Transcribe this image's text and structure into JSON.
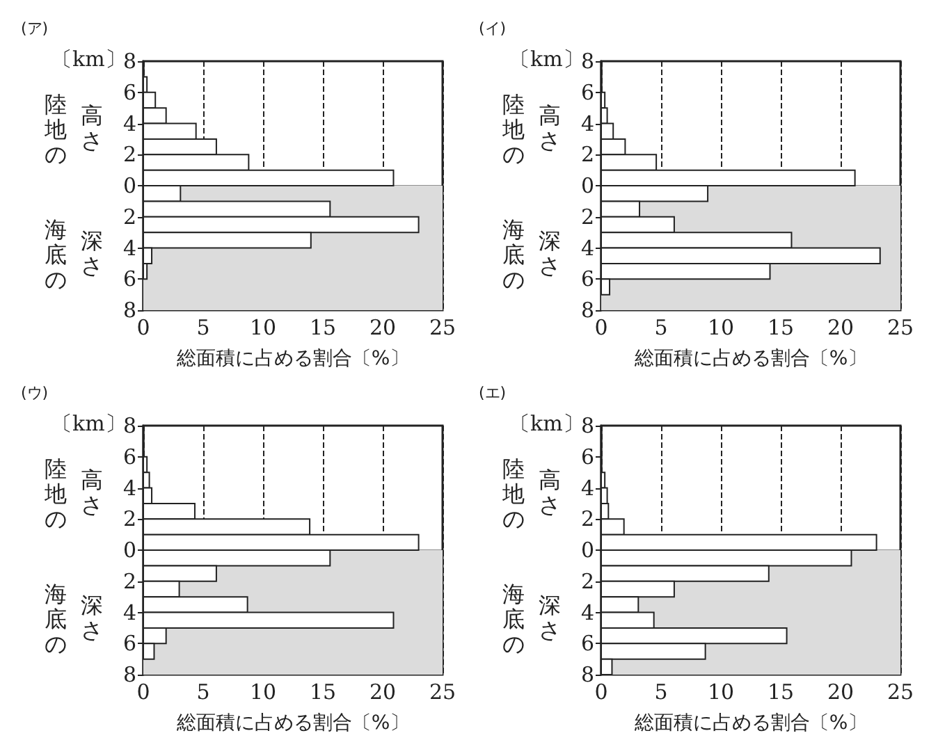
{
  "chart_data": [
    {
      "type": "histogram",
      "orientation": "horizontal",
      "title": "(ア)",
      "xlabel": "総面積に占める割合〔%〕",
      "ylabel": "〔km〕",
      "bins": [
        8,
        7,
        6,
        5,
        4,
        3,
        2,
        1,
        0,
        -1,
        -2,
        -3,
        -4,
        -5,
        -6,
        -7,
        -8
      ],
      "values": [
        0,
        0.3,
        1.0,
        1.9,
        4.4,
        6.1,
        8.8,
        20.9,
        3.1,
        15.6,
        23.0,
        14.0,
        0.7,
        0.3,
        0,
        0
      ],
      "color": "#ffffff",
      "xlim": [
        0,
        25
      ],
      "xticks": [
        0,
        5,
        10,
        15,
        20,
        25
      ],
      "ylim": [
        -8,
        8
      ],
      "yticks": [
        {
          "value": -8,
          "label": "8"
        },
        {
          "value": -6,
          "label": "6"
        },
        {
          "value": -4,
          "label": "4"
        },
        {
          "value": -2,
          "label": "2"
        },
        0,
        2,
        4,
        6,
        8
      ],
      "grid": "x",
      "bands": [
        {
          "axis": "y",
          "from": 0,
          "to": -8,
          "color": "#dcdcdc"
        }
      ],
      "annotations": [
        "陸地の",
        "高さ",
        "海底の",
        "深さ"
      ]
    },
    {
      "type": "histogram",
      "orientation": "horizontal",
      "title": "(イ)",
      "xlabel": "総面積に占める割合〔%〕",
      "ylabel": "〔km〕",
      "bins": [
        8,
        7,
        6,
        5,
        4,
        3,
        2,
        1,
        0,
        -1,
        -2,
        -3,
        -4,
        -5,
        -6,
        -7,
        -8
      ],
      "values": [
        0,
        0,
        0.3,
        0.5,
        1.0,
        2.0,
        4.6,
        21.2,
        8.9,
        3.2,
        6.1,
        15.9,
        23.3,
        14.1,
        0.7,
        0
      ],
      "color": "#ffffff",
      "xlim": [
        0,
        25
      ],
      "xticks": [
        0,
        5,
        10,
        15,
        20,
        25
      ],
      "ylim": [
        -8,
        8
      ],
      "yticks": [
        {
          "value": -8,
          "label": "8"
        },
        {
          "value": -6,
          "label": "6"
        },
        {
          "value": -4,
          "label": "4"
        },
        {
          "value": -2,
          "label": "2"
        },
        0,
        2,
        4,
        6,
        8
      ],
      "grid": "x",
      "bands": [
        {
          "axis": "y",
          "from": 0,
          "to": -8,
          "color": "#dcdcdc"
        }
      ],
      "annotations": [
        "陸地の",
        "高さ",
        "海底の",
        "深さ"
      ]
    },
    {
      "type": "histogram",
      "orientation": "horizontal",
      "title": "(ウ)",
      "xlabel": "総面積に占める割合〔%〕",
      "ylabel": "〔km〕",
      "bins": [
        8,
        7,
        6,
        5,
        4,
        3,
        2,
        1,
        0,
        -1,
        -2,
        -3,
        -4,
        -5,
        -6,
        -7,
        -8
      ],
      "values": [
        0,
        0,
        0.3,
        0.5,
        0.7,
        4.3,
        13.9,
        23.0,
        15.6,
        6.1,
        3.0,
        8.7,
        20.9,
        1.9,
        0.9,
        0
      ],
      "color": "#ffffff",
      "xlim": [
        0,
        25
      ],
      "xticks": [
        0,
        5,
        10,
        15,
        20,
        25
      ],
      "ylim": [
        -8,
        8
      ],
      "yticks": [
        {
          "value": -8,
          "label": "8"
        },
        {
          "value": -6,
          "label": "6"
        },
        {
          "value": -4,
          "label": "4"
        },
        {
          "value": -2,
          "label": "2"
        },
        0,
        2,
        4,
        6,
        8
      ],
      "grid": "x",
      "bands": [
        {
          "axis": "y",
          "from": 0,
          "to": -8,
          "color": "#dcdcdc"
        }
      ],
      "annotations": [
        "陸地の",
        "高さ",
        "海底の",
        "深さ"
      ]
    },
    {
      "type": "histogram",
      "orientation": "horizontal",
      "title": "(エ)",
      "xlabel": "総面積に占める割合〔%〕",
      "ylabel": "〔km〕",
      "bins": [
        8,
        7,
        6,
        5,
        4,
        3,
        2,
        1,
        0,
        -1,
        -2,
        -3,
        -4,
        -5,
        -6,
        -7,
        -8
      ],
      "values": [
        0,
        0,
        0,
        0.3,
        0.5,
        0.6,
        1.9,
        23.0,
        20.9,
        14.0,
        6.1,
        3.1,
        4.4,
        15.5,
        8.7,
        0.9
      ],
      "color": "#ffffff",
      "xlim": [
        0,
        25
      ],
      "xticks": [
        0,
        5,
        10,
        15,
        20,
        25
      ],
      "ylim": [
        -8,
        8
      ],
      "yticks": [
        {
          "value": -8,
          "label": "8"
        },
        {
          "value": -6,
          "label": "6"
        },
        {
          "value": -4,
          "label": "4"
        },
        {
          "value": -2,
          "label": "2"
        },
        0,
        2,
        4,
        6,
        8
      ],
      "grid": "x",
      "bands": [
        {
          "axis": "y",
          "from": 0,
          "to": -8,
          "color": "#dcdcdc"
        }
      ],
      "annotations": [
        "陸地の",
        "高さ",
        "海底の",
        "深さ"
      ]
    }
  ]
}
